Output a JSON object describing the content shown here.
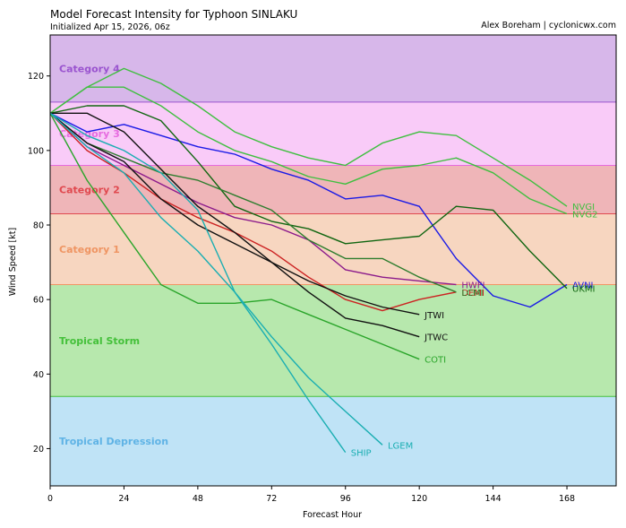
{
  "header": {
    "title": "Model Forecast Intensity for Typhoon SINLAKU",
    "initialized": "Initialized Apr 15, 2026, 06z",
    "credit": "Alex Boreham | cyclonicwx.com"
  },
  "chart_data": {
    "type": "line",
    "title": "Model Forecast Intensity for Typhoon SINLAKU",
    "subtitle": "Initialized Apr 15, 2026, 06z",
    "xlabel": "Forecast Hour",
    "ylabel": "Wind Speed [kt]",
    "xlim": [
      0,
      184
    ],
    "ylim": [
      10,
      131
    ],
    "xticks": [
      0,
      24,
      48,
      72,
      96,
      120,
      144,
      168
    ],
    "yticks": [
      20,
      40,
      60,
      80,
      100,
      120
    ],
    "bands": [
      {
        "name": "Tropical Depression",
        "min": 10,
        "max": 34,
        "color": "#bfe3f6",
        "label_color": "#5fb3e5",
        "label_y": 22
      },
      {
        "name": "Tropical Storm",
        "min": 34,
        "max": 64,
        "color": "#b7e8ad",
        "label_color": "#44c03a",
        "label_y": 49
      },
      {
        "name": "Category 1",
        "min": 64,
        "max": 83,
        "color": "#f7d6c0",
        "label_color": "#ef9563",
        "label_y": 73.5
      },
      {
        "name": "Category 2",
        "min": 83,
        "max": 96,
        "color": "#efb5b8",
        "label_color": "#e0494f",
        "label_y": 89.5
      },
      {
        "name": "Category 3",
        "min": 96,
        "max": 113,
        "color": "#f9cbf8",
        "label_color": "#e66be0",
        "label_y": 104.5
      },
      {
        "name": "Category 4",
        "min": 113,
        "max": 131,
        "color": "#d7b7ea",
        "label_color": "#9a54cf",
        "label_y": 122
      }
    ],
    "series": [
      {
        "name": "NVGI",
        "color": "#3fbf3f",
        "x": [
          0,
          12,
          24,
          36,
          48,
          60,
          72,
          84,
          96,
          108,
          120,
          132,
          144,
          156,
          168
        ],
        "y": [
          110,
          117,
          122,
          118,
          112,
          105,
          101,
          98,
          96,
          102,
          105,
          104,
          98,
          92,
          85
        ],
        "label_offset": 0
      },
      {
        "name": "NVG2",
        "color": "#3fbf3f",
        "x": [
          0,
          12,
          24,
          36,
          48,
          60,
          72,
          84,
          96,
          108,
          120,
          132,
          144,
          156,
          168
        ],
        "y": [
          110,
          117,
          117,
          112,
          105,
          100,
          97,
          93,
          91,
          95,
          96,
          98,
          94,
          87,
          83
        ],
        "label_offset": 0
      },
      {
        "name": "AVNI",
        "color": "#1a1ae6",
        "x": [
          0,
          12,
          24,
          36,
          48,
          60,
          72,
          84,
          96,
          108,
          120,
          132,
          144,
          156,
          168
        ],
        "y": [
          110,
          105,
          107,
          104,
          101,
          99,
          95,
          92,
          87,
          88,
          85,
          71,
          61,
          58,
          64
        ],
        "label_offset": 0
      },
      {
        "name": "UKMI",
        "color": "#116611",
        "x": [
          0,
          12,
          24,
          36,
          48,
          60,
          72,
          84,
          96,
          108,
          120,
          132,
          144,
          156,
          168
        ],
        "y": [
          110,
          112,
          112,
          108,
          97,
          85,
          81,
          79,
          75,
          76,
          77,
          85,
          84,
          73,
          63
        ],
        "label_offset": 0
      },
      {
        "name": "HWFI",
        "color": "#8b1a8b",
        "x": [
          0,
          12,
          24,
          36,
          48,
          60,
          72,
          84,
          96,
          108,
          120,
          132
        ],
        "y": [
          110,
          101,
          96,
          91,
          86,
          82,
          80,
          76,
          68,
          66,
          65,
          64
        ],
        "label_offset": 0
      },
      {
        "name": "DEMI",
        "color": "#cc2222",
        "x": [
          0,
          12,
          24,
          36,
          48,
          60,
          72,
          84,
          96,
          108,
          120,
          132
        ],
        "y": [
          110,
          100,
          94,
          87,
          82,
          78,
          73,
          66,
          60,
          57,
          60,
          62
        ],
        "label_offset": 0
      },
      {
        "name": "LCMI",
        "color": "#2e7d2e",
        "x": [
          0,
          12,
          24,
          36,
          48,
          60,
          72,
          84,
          96,
          108,
          120,
          132
        ],
        "y": [
          110,
          102,
          98,
          94,
          92,
          88,
          84,
          76,
          71,
          71,
          66,
          62
        ],
        "label_offset": 0
      },
      {
        "name": "JTWI",
        "color": "#111111",
        "x": [
          0,
          12,
          24,
          36,
          48,
          60,
          72,
          84,
          96,
          108,
          120
        ],
        "y": [
          110,
          102,
          97,
          87,
          80,
          75,
          70,
          65,
          61,
          58,
          56
        ],
        "label_offset": 0
      },
      {
        "name": "JTWC",
        "color": "#111111",
        "x": [
          0,
          12,
          24,
          36,
          48,
          60,
          72,
          84,
          96,
          108,
          120
        ],
        "y": [
          110,
          110,
          105,
          95,
          85,
          78,
          70,
          62,
          55,
          53,
          50
        ],
        "label_offset": 0
      },
      {
        "name": "COTI",
        "color": "#2aa52a",
        "x": [
          0,
          12,
          24,
          36,
          48,
          60,
          72,
          84,
          96,
          108,
          120
        ],
        "y": [
          110,
          92,
          78,
          64,
          59,
          59,
          60,
          56,
          52,
          48,
          44
        ],
        "label_offset": 0
      },
      {
        "name": "LGEM",
        "color": "#1aaeb2",
        "x": [
          0,
          12,
          24,
          36,
          48,
          60,
          72,
          84,
          96,
          108
        ],
        "y": [
          110,
          104,
          100,
          94,
          84,
          62,
          50,
          39,
          30,
          21
        ],
        "label_offset": 0
      },
      {
        "name": "SHIP",
        "color": "#1aaeb2",
        "x": [
          0,
          12,
          24,
          36,
          48,
          60,
          72,
          84,
          96
        ],
        "y": [
          110,
          101,
          94,
          82,
          73,
          62,
          48,
          33,
          19
        ],
        "label_offset": 0
      }
    ]
  }
}
